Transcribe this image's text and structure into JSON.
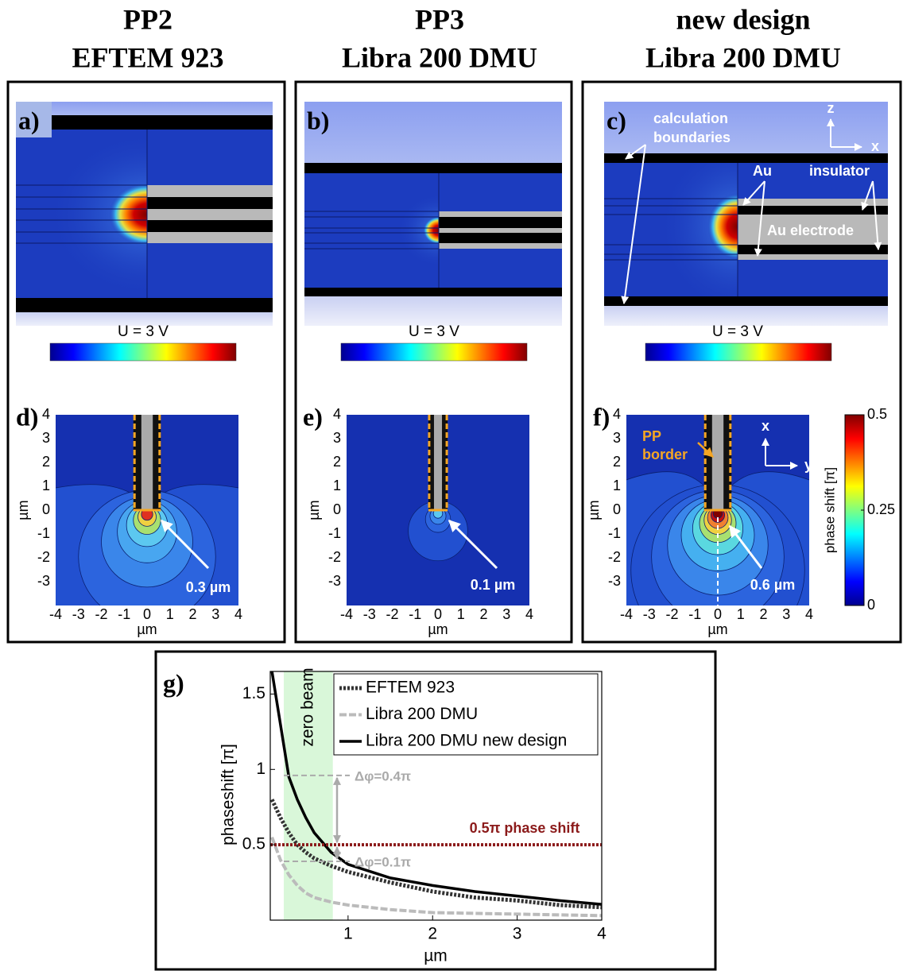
{
  "columns": [
    {
      "title": "PP2",
      "subtitle": "EFTEM 923"
    },
    {
      "title": "PP3",
      "subtitle": "Libra 200 DMU"
    },
    {
      "title": "new design",
      "subtitle": "Libra 200 DMU"
    }
  ],
  "simulations": [
    {
      "label": "a)",
      "caption": "U = 3 V"
    },
    {
      "label": "b)",
      "caption": "U = 3 V"
    },
    {
      "label": "c)",
      "caption": "U = 3 V",
      "annotations": [
        "calculation",
        "boundaries",
        "Au",
        "insulator",
        "Au electrode",
        "z",
        "x"
      ]
    }
  ],
  "contour_panels": [
    {
      "label": "d)",
      "annotation": "0.3 µm",
      "xlabel": "µm",
      "ylabel": "µm",
      "xlim": [
        -4,
        4
      ],
      "ylim": [
        -4,
        4
      ],
      "xticks": [
        -4,
        -3,
        -2,
        -1,
        0,
        1,
        2,
        3,
        4
      ],
      "yticks": [
        -3,
        -2,
        -1,
        0,
        1,
        2,
        3,
        4
      ]
    },
    {
      "label": "e)",
      "annotation": "0.1 µm",
      "xlabel": "µm",
      "ylabel": "µm",
      "xlim": [
        -4,
        4
      ],
      "ylim": [
        -4,
        4
      ],
      "xticks": [
        -4,
        -3,
        -2,
        -1,
        0,
        1,
        2,
        3,
        4
      ],
      "yticks": [
        -3,
        -2,
        -1,
        0,
        1,
        2,
        3,
        4
      ]
    },
    {
      "label": "f)",
      "annotation": "0.6 µm",
      "xlabel": "µm",
      "ylabel": "µm",
      "xlim": [
        -4,
        4
      ],
      "ylim": [
        -4,
        4
      ],
      "xticks": [
        -4,
        -3,
        -2,
        -1,
        0,
        1,
        2,
        3,
        4
      ],
      "yticks": [
        -3,
        -2,
        -1,
        0,
        1,
        2,
        3,
        4
      ],
      "extras": [
        "PP",
        "border",
        "x",
        "y"
      ],
      "colorbar": {
        "label": "phase shift [π]",
        "lim": [
          0,
          0.5
        ],
        "ticks": [
          0,
          0.25,
          0.5
        ]
      }
    }
  ],
  "chart_data": {
    "type": "line",
    "panel_label": "g)",
    "x": [
      0.1,
      0.2,
      0.3,
      0.4,
      0.5,
      0.6,
      0.8,
      1,
      1.5,
      2,
      2.5,
      3,
      3.5,
      4
    ],
    "series": [
      {
        "name": "EFTEM 923",
        "color": "#333333",
        "style": "dotted",
        "values": [
          0.8,
          0.68,
          0.58,
          0.5,
          0.45,
          0.41,
          0.36,
          0.32,
          0.25,
          0.19,
          0.15,
          0.13,
          0.1,
          0.085
        ]
      },
      {
        "name": "Libra 200 DMU",
        "color": "#bbbbbb",
        "style": "dashed",
        "values": [
          0.55,
          0.4,
          0.3,
          0.23,
          0.18,
          0.15,
          0.12,
          0.1,
          0.07,
          0.05,
          0.045,
          0.04,
          0.035,
          0.03
        ]
      },
      {
        "name": "Libra 200 DMU new design",
        "color": "#000000",
        "style": "solid",
        "values": [
          1.65,
          1.3,
          0.95,
          0.8,
          0.68,
          0.58,
          0.45,
          0.37,
          0.28,
          0.23,
          0.19,
          0.16,
          0.13,
          0.105
        ]
      }
    ],
    "xlabel": "µm",
    "ylabel": "phaseshift  [π]",
    "xlim": [
      0.08,
      4
    ],
    "ylim": [
      0,
      1.65
    ],
    "xticks": [
      1,
      2,
      3,
      4
    ],
    "yticks": [
      0.5,
      1,
      1.5
    ],
    "legend": "upper right",
    "band": {
      "label": "zero beam",
      "range": [
        0.24,
        0.82
      ],
      "color": "#d9f7d9"
    },
    "reference_line": {
      "label": "0.5π phase shift",
      "value": 0.5,
      "color": "#8b1a1a"
    },
    "annotations": [
      {
        "text": "Δφ=0.4π",
        "from": 0.96,
        "to": 0.5
      },
      {
        "text": "Δφ=0.1π",
        "from": 0.5,
        "to": 0.39
      }
    ]
  }
}
